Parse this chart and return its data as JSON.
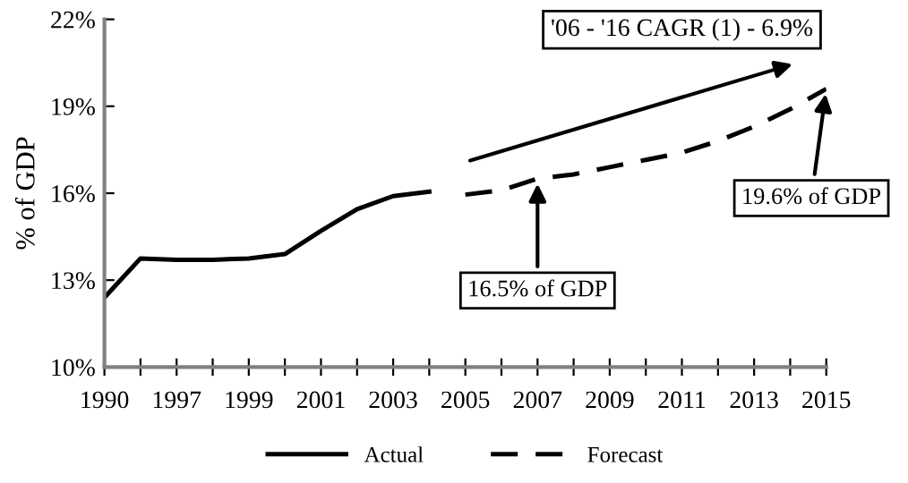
{
  "chart_data": {
    "type": "line",
    "ylabel": "% of GDP",
    "categories": [
      "1990",
      null,
      "1997",
      null,
      "1999",
      null,
      "2001",
      null,
      "2003",
      null,
      "2005",
      null,
      "2007",
      null,
      "2009",
      null,
      "2011",
      null,
      "2013",
      null,
      "2015"
    ],
    "series": [
      {
        "name": "Actual",
        "color": "#000000",
        "line_style": "solid",
        "values": [
          12.4,
          13.75,
          13.7,
          13.7,
          13.75,
          13.9,
          14.7,
          15.45,
          15.9,
          16.05,
          null,
          null,
          null,
          null,
          null,
          null,
          null,
          null,
          null,
          null,
          null
        ]
      },
      {
        "name": "Forecast",
        "color": "#000000",
        "line_style": "dashed",
        "values": [
          null,
          null,
          null,
          null,
          null,
          null,
          null,
          null,
          null,
          null,
          15.95,
          16.1,
          16.5,
          16.65,
          16.9,
          17.15,
          17.4,
          17.8,
          18.3,
          18.9,
          19.6
        ]
      }
    ],
    "ylim": [
      10,
      22
    ],
    "yticks": [
      {
        "value": 10,
        "label": "10%"
      },
      {
        "value": 13,
        "label": "13%"
      },
      {
        "value": 16,
        "label": "16%"
      },
      {
        "value": 19,
        "label": "19%"
      },
      {
        "value": 22,
        "label": "22%"
      }
    ],
    "annotations": [
      "'06 - '16 CAGR (1) - 6.9%",
      {
        "text": "16.5% of GDP",
        "x": "2007",
        "y": 16.5
      },
      {
        "text": "19.6% of GDP",
        "x": "2015",
        "y": 19.6
      }
    ],
    "grid": false,
    "legend": "bottom",
    "marker": "none"
  }
}
